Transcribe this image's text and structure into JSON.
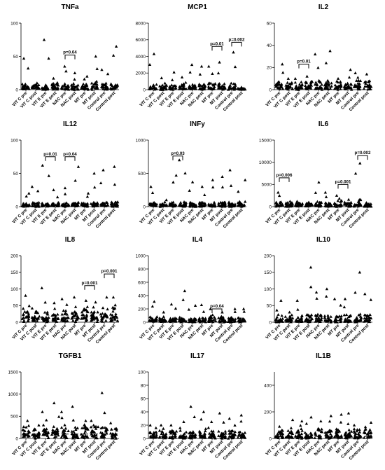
{
  "chart_data": [
    {
      "type": "scatter",
      "title": "TNFa",
      "ylim": [
        0,
        100
      ],
      "yticks": [
        0,
        50,
        100
      ],
      "categories": [
        "VIT C pre",
        "VIT C post",
        "VIT E pre",
        "VIT E post",
        "NAC pre",
        "NAC post",
        "MT pre",
        "MT post",
        "Control pre",
        "Control post"
      ],
      "outliers": [
        47,
        10,
        75,
        17,
        35,
        25,
        20,
        50,
        30,
        65
      ],
      "med": [
        2,
        2,
        2,
        2,
        2,
        2,
        2,
        5,
        2,
        2
      ],
      "spread": [
        8,
        8,
        6,
        8,
        8,
        8,
        8,
        10,
        8,
        10
      ],
      "annotations": [
        {
          "from": 4,
          "to": 5,
          "text": "p=0.04",
          "y": 52
        }
      ]
    },
    {
      "type": "scatter",
      "title": "MCP1",
      "ylim": [
        0,
        8000
      ],
      "yticks": [
        0,
        2000,
        4000,
        6000,
        8000
      ],
      "categories": [
        "VIT C pre",
        "VIT C post",
        "VIT E pre",
        "VIT E post",
        "NAC pre",
        "NAC post",
        "MT pre",
        "MT post",
        "Control pre",
        "Control post"
      ],
      "outliers": [
        4300,
        1400,
        2100,
        1500,
        3000,
        2800,
        2800,
        3300,
        4500,
        300
      ],
      "med": [
        150,
        150,
        150,
        150,
        150,
        150,
        200,
        200,
        200,
        60
      ],
      "spread": [
        600,
        600,
        500,
        600,
        600,
        600,
        700,
        700,
        700,
        150
      ],
      "annotations": [
        {
          "from": 6,
          "to": 7,
          "text": "p=0.01",
          "y": 5200
        },
        {
          "from": 8,
          "to": 9,
          "text": "p=0.002",
          "y": 5700
        }
      ]
    },
    {
      "type": "scatter",
      "title": "IL2",
      "ylim": [
        0,
        60
      ],
      "yticks": [
        0,
        20,
        40,
        60
      ],
      "categories": [
        "VIT C pre",
        "VIT C post",
        "VIT E pre",
        "VIT E post",
        "NAC pre",
        "NAC post",
        "MT pre",
        "MT post",
        "Control pre",
        "Control post"
      ],
      "outliers": [
        23,
        10,
        10,
        12,
        32,
        35,
        10,
        18,
        15,
        14
      ],
      "med": [
        2,
        2,
        2,
        2,
        2,
        2,
        2,
        2,
        3,
        3
      ],
      "spread": [
        6,
        6,
        5,
        6,
        7,
        7,
        6,
        6,
        8,
        8
      ],
      "annotations": [
        {
          "from": 2,
          "to": 3,
          "text": "p=0.01",
          "y": 23
        }
      ]
    },
    {
      "type": "scatter",
      "title": "IL12",
      "ylim": [
        0,
        100
      ],
      "yticks": [
        0,
        50,
        100
      ],
      "categories": [
        "VIT C pre",
        "VIT C post",
        "VIT E pre",
        "VIT E post",
        "NAC pre",
        "NAC post",
        "MT pre",
        "MT post",
        "Control pre",
        "Control post"
      ],
      "outliers": [
        20,
        30,
        62,
        25,
        28,
        60,
        20,
        50,
        55,
        60
      ],
      "med": [
        2,
        2,
        2,
        2,
        2,
        2,
        2,
        2,
        2,
        2
      ],
      "spread": [
        5,
        5,
        5,
        5,
        5,
        5,
        5,
        5,
        6,
        6
      ],
      "annotations": [
        {
          "from": 2,
          "to": 3,
          "text": "p=0.01",
          "y": 75
        },
        {
          "from": 4,
          "to": 5,
          "text": "p=0.04",
          "y": 75
        }
      ]
    },
    {
      "type": "scatter",
      "title": "INFy",
      "ylim": [
        0,
        1000
      ],
      "yticks": [
        0,
        500,
        1000
      ],
      "categories": [
        "VIT C pre",
        "VIT C post",
        "VIT E pre",
        "VIT E post",
        "NAC pre",
        "NAC post",
        "MT pre",
        "MT post",
        "Control pre",
        "Control post"
      ],
      "outliers": [
        300,
        100,
        470,
        700,
        370,
        300,
        400,
        450,
        550,
        400
      ],
      "med": [
        20,
        20,
        20,
        20,
        20,
        20,
        20,
        20,
        20,
        20
      ],
      "spread": [
        60,
        60,
        60,
        60,
        60,
        60,
        60,
        60,
        60,
        60
      ],
      "annotations": [
        {
          "from": 2,
          "to": 3,
          "text": "p=0.03",
          "y": 760
        }
      ]
    },
    {
      "type": "scatter",
      "title": "IL6",
      "ylim": [
        0,
        15000
      ],
      "yticks": [
        0,
        5000,
        10000,
        15000
      ],
      "categories": [
        "VIT C pre",
        "VIT C post",
        "VIT E pre",
        "VIT E post",
        "NAC pre",
        "NAC post",
        "MT pre",
        "MT post",
        "Control pre",
        "Control post"
      ],
      "outliers": [
        3200,
        1200,
        1200,
        1000,
        5500,
        3200,
        2500,
        1600,
        9800,
        900
      ],
      "med": [
        300,
        300,
        300,
        300,
        300,
        300,
        400,
        300,
        500,
        200
      ],
      "spread": [
        900,
        900,
        700,
        700,
        900,
        900,
        1200,
        900,
        1500,
        600
      ],
      "annotations": [
        {
          "from": 0,
          "to": 1,
          "text": "p=0.006",
          "y": 6500
        },
        {
          "from": 6,
          "to": 7,
          "text": "p=0.001",
          "y": 5000
        },
        {
          "from": 8,
          "to": 9,
          "text": "p=0.002",
          "y": 11500
        }
      ]
    },
    {
      "type": "scatter",
      "title": "IL8",
      "ylim": [
        0,
        200
      ],
      "yticks": [
        0,
        50,
        100,
        150,
        200
      ],
      "categories": [
        "VIT C pre",
        "VIT C post",
        "VIT E pre",
        "VIT E post",
        "NAC pre",
        "NAC post",
        "MT pre",
        "MT post",
        "Control pre",
        "Control post"
      ],
      "outliers": [
        80,
        42,
        103,
        58,
        70,
        75,
        65,
        60,
        75,
        75
      ],
      "med": [
        12,
        12,
        12,
        12,
        12,
        12,
        15,
        15,
        15,
        15
      ],
      "spread": [
        30,
        25,
        30,
        25,
        30,
        30,
        35,
        35,
        35,
        35
      ],
      "annotations": [
        {
          "from": 6,
          "to": 7,
          "text": "p=0.001",
          "y": 110
        },
        {
          "from": 8,
          "to": 9,
          "text": "p=0.001",
          "y": 145
        }
      ]
    },
    {
      "type": "scatter",
      "title": "IL4",
      "ylim": [
        0,
        1000
      ],
      "yticks": [
        0,
        200,
        400,
        600,
        800,
        1000
      ],
      "categories": [
        "VIT C pre",
        "VIT C post",
        "VIT E pre",
        "VIT E post",
        "NAC pre",
        "NAC post",
        "MT pre",
        "MT post",
        "Control pre",
        "Control post"
      ],
      "outliers": [
        310,
        150,
        270,
        470,
        250,
        260,
        200,
        150,
        200,
        200
      ],
      "med": [
        20,
        20,
        20,
        20,
        20,
        20,
        20,
        20,
        20,
        20
      ],
      "spread": [
        80,
        60,
        60,
        60,
        60,
        60,
        80,
        60,
        60,
        60
      ],
      "annotations": [
        {
          "from": 6,
          "to": 7,
          "text": "p=0.04",
          "y": 200
        }
      ]
    },
    {
      "type": "scatter",
      "title": "IL10",
      "ylim": [
        0,
        200
      ],
      "yticks": [
        0,
        50,
        100,
        150,
        200
      ],
      "categories": [
        "VIT C pre",
        "VIT C post",
        "VIT E pre",
        "VIT E post",
        "NAC pre",
        "NAC post",
        "MT pre",
        "MT post",
        "Control pre",
        "Control post"
      ],
      "outliers": [
        65,
        30,
        65,
        165,
        90,
        100,
        70,
        70,
        150,
        85
      ],
      "med": [
        5,
        5,
        5,
        5,
        5,
        5,
        5,
        5,
        5,
        5
      ],
      "spread": [
        20,
        15,
        20,
        20,
        20,
        20,
        20,
        20,
        25,
        20
      ],
      "annotations": []
    },
    {
      "type": "scatter",
      "title": "TGFB1",
      "ylim": [
        0,
        1500
      ],
      "yticks": [
        0,
        500,
        1000,
        1500
      ],
      "categories": [
        "VIT C pre",
        "VIT C post",
        "VIT E pre",
        "VIT E post",
        "NAC pre",
        "NAC post",
        "MT pre",
        "MT post",
        "Control pre",
        "Control post"
      ],
      "outliers": [
        400,
        300,
        600,
        800,
        600,
        720,
        400,
        400,
        1030,
        350
      ],
      "med": [
        100,
        100,
        100,
        100,
        100,
        100,
        100,
        100,
        100,
        100
      ],
      "spread": [
        250,
        200,
        250,
        250,
        250,
        250,
        250,
        200,
        250,
        200
      ],
      "annotations": []
    },
    {
      "type": "scatter",
      "title": "IL17",
      "ylim": [
        0,
        100
      ],
      "yticks": [
        0,
        20,
        40,
        60,
        80,
        100
      ],
      "categories": [
        "VIT C pre",
        "VIT C post",
        "VIT E pre",
        "VIT E post",
        "NAC pre",
        "NAC post",
        "MT pre",
        "MT post",
        "Control pre",
        "Control post"
      ],
      "outliers": [
        20,
        20,
        20,
        25,
        48,
        40,
        25,
        38,
        30,
        35
      ],
      "med": [
        3,
        3,
        3,
        3,
        3,
        3,
        3,
        3,
        3,
        3
      ],
      "spread": [
        10,
        10,
        10,
        10,
        12,
        12,
        10,
        10,
        10,
        10
      ],
      "annotations": []
    },
    {
      "type": "scatter",
      "title": "IL1B",
      "ylim": [
        0,
        500
      ],
      "yticks": [
        0,
        200,
        400
      ],
      "categories": [
        "VIT C pre",
        "VIT C post",
        "VIT E pre",
        "VIT E post",
        "NAC pre",
        "NAC post",
        "MT pre",
        "MT post",
        "Control pre",
        "Control post"
      ],
      "outliers": [
        90,
        140,
        130,
        160,
        130,
        170,
        180,
        190,
        100,
        120
      ],
      "med": [
        15,
        15,
        15,
        15,
        15,
        15,
        15,
        15,
        15,
        15
      ],
      "spread": [
        60,
        60,
        60,
        60,
        60,
        60,
        60,
        60,
        60,
        60
      ],
      "annotations": []
    }
  ]
}
